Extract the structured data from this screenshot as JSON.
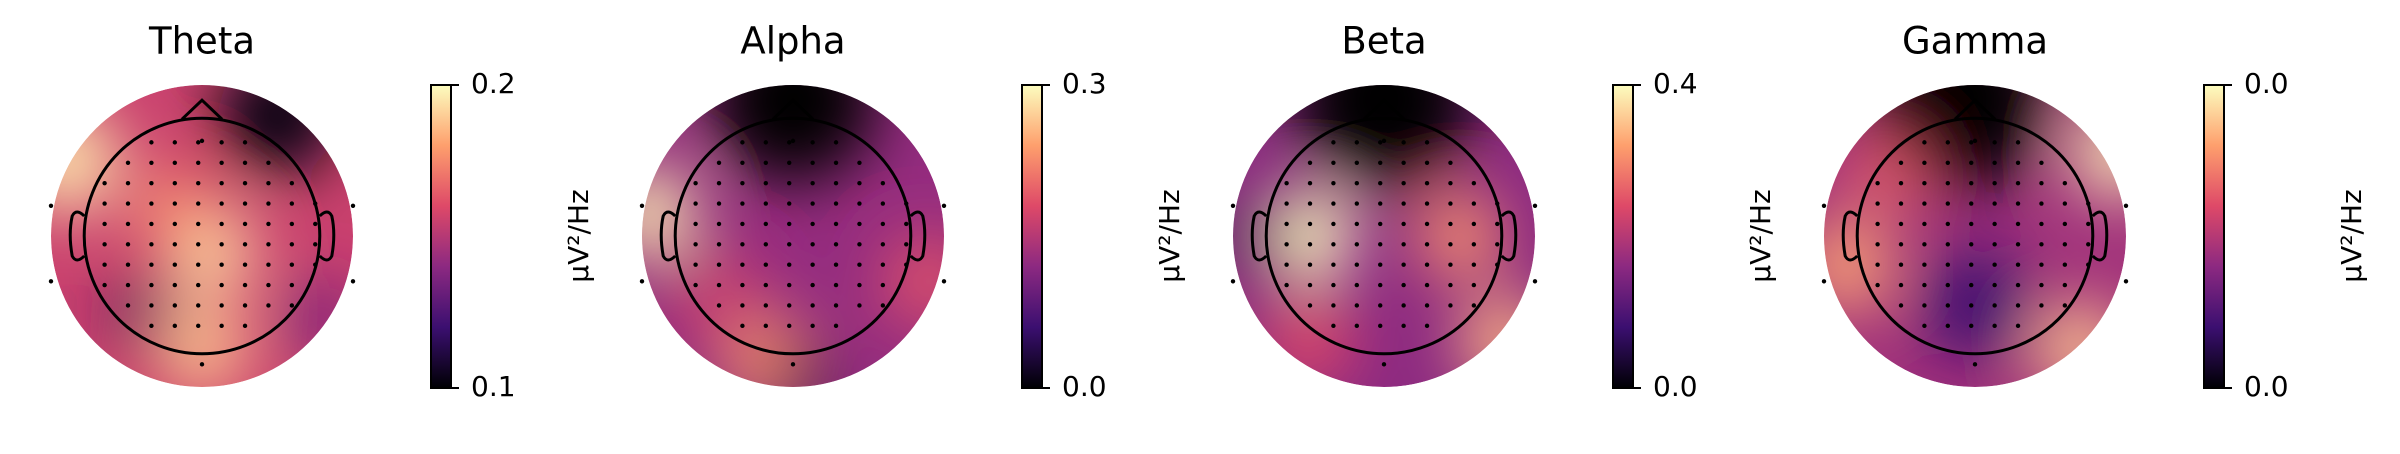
{
  "chart_data": [
    {
      "type": "topomap",
      "title": "Theta",
      "colorbar_label": "µV²/Hz",
      "clim": [
        0.1,
        0.2
      ],
      "cticks": [
        0.1,
        0.2
      ],
      "colormap": [
        "#000004",
        "#3b0f70",
        "#8c2981",
        "#de4968",
        "#fe9f6d",
        "#fcfdbf"
      ]
    },
    {
      "type": "topomap",
      "title": "Alpha",
      "colorbar_label": "µV²/Hz",
      "clim": [
        0,
        0.3
      ],
      "cticks": [
        {
          "value": 0,
          "label": "0.0"
        },
        0.3
      ],
      "colormap": [
        "#000004",
        "#3b0f70",
        "#8c2981",
        "#de4968",
        "#fe9f6d",
        "#fcfdbf"
      ]
    },
    {
      "type": "topomap",
      "title": "Beta",
      "colorbar_label": "µV²/Hz",
      "clim": [
        0,
        0.4
      ],
      "cticks": [
        {
          "value": 0,
          "label": "0.0"
        },
        0.4
      ],
      "colormap": [
        "#000004",
        "#3b0f70",
        "#8c2981",
        "#de4968",
        "#fe9f6d",
        "#fcfdbf"
      ]
    },
    {
      "type": "topomap",
      "title": "Gamma",
      "colorbar_label": "µV²/Hz",
      "clim": [
        0,
        0.04
      ],
      "cticks": [
        {
          "value": 0,
          "label": "0.0"
        },
        {
          "value": 0.04,
          "label": "0.0"
        }
      ],
      "colormap": [
        "#000004",
        "#3b0f70",
        "#8c2981",
        "#de4968",
        "#fe9f6d",
        "#fcfdbf"
      ]
    }
  ]
}
